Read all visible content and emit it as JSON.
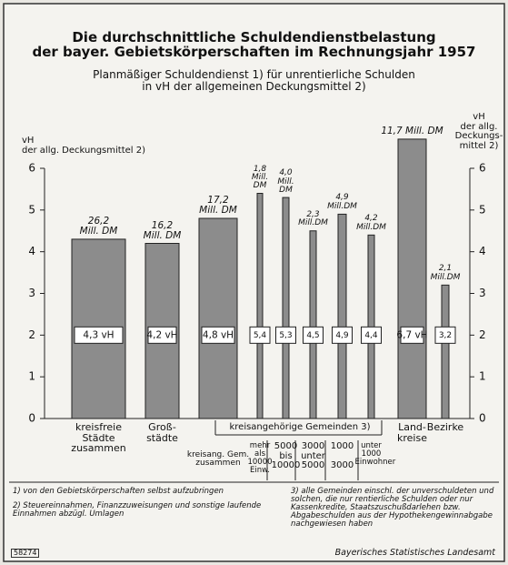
{
  "chart_data": {
    "type": "bar",
    "title": "Die durchschnittliche Schuldendienstbelastung\nder bayer. Gebietskörperschaften im Rechnungsjahr 1957",
    "subtitle": "Planmäßiger Schuldendienst 1) für unrentierliche Schulden\nin vH der allgemeinen Deckungsmittel 2)",
    "y_label_left": "vH\nder allg. Deckungsmittel 2)",
    "y_label_right": "vH\nder allg.\nDeckungs-\nmittel 2)",
    "categories": [
      "kreisfreie\nStädte\nzusammen",
      "Groß-\nstädte",
      "kreisang. Gem.\nzusammen",
      "mehr als\n10000\nEinw.",
      "5000\nbis\n10000",
      "3000\nunter\n5000",
      "1000\n\n3000",
      "unter\n1000\nEinwohner",
      "Land-\nkreise",
      "Bezirke"
    ],
    "group_label": "kreisangehörige Gemeinden 3)",
    "values": [
      4.3,
      4.2,
      4.8,
      5.4,
      5.3,
      4.5,
      4.9,
      4.4,
      6.7,
      3.2
    ],
    "value_labels": [
      "4,3 vH",
      "4,2 vH",
      "4,8 vH",
      "5,4",
      "5,3",
      "4,5",
      "4,9",
      "4,4",
      "6,7 vH",
      "3,2"
    ],
    "annotations": [
      "26,2\nMill. DM",
      "16,2\nMill. DM",
      "17,2\nMill. DM",
      "1,8\nMill.\nDM",
      "4,0\nMill.\nDM",
      "2,3\nMill.DM",
      "4,9\nMill.DM",
      "4,2\nMill.DM",
      "11,7 Mill. DM",
      "2,1\nMill.DM"
    ],
    "color": "#8c8c8c",
    "ylim": [
      0,
      6.8
    ],
    "yticks": [
      0,
      1,
      2,
      3,
      4,
      5,
      6
    ],
    "footnotes": [
      "1) von den Gebietskörperschaften selbst aufzubringen",
      "2) Steuereinnahmen, Finanzzuweisungen und sonstige laufende Einnahmen abzügl. Umlagen",
      "3) alle Gemeinden einschl. der unverschuldeten und solchen, die nur rentierliche Schulden oder nur Kassenkredite, Staatszuschußdarlehen bzw. Abgabeschulden aus der Hypothekengewinnabgabe nachgewiesen haben"
    ],
    "id_number": "58274",
    "source": "Bayerisches Statistisches Landesamt"
  }
}
